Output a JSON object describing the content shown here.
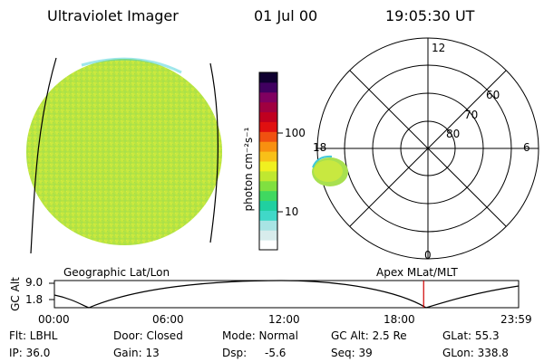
{
  "header": {
    "title": "Ultraviolet Imager",
    "date": "01 Jul 00",
    "time": "19:05:30 UT"
  },
  "colorbar": {
    "unit_label": "photon cm⁻²s⁻¹",
    "tick_labels": [
      "100",
      "10"
    ],
    "colors": [
      "#ffffff",
      "#d8ecec",
      "#a8e4e4",
      "#40d8c8",
      "#20d0a0",
      "#40d860",
      "#80e040",
      "#c0e830",
      "#f0f020",
      "#f8c018",
      "#f89010",
      "#f05010",
      "#e01010",
      "#c00020",
      "#a00040",
      "#800060",
      "#400060",
      "#100030"
    ]
  },
  "polar": {
    "lat_labels": [
      "80",
      "70",
      "60"
    ],
    "mlt_labels": {
      "top": "12",
      "bottom": "0",
      "left": "18",
      "right": "6"
    }
  },
  "timeline": {
    "ylabel": "GC Alt",
    "yticks": [
      "9.0",
      "1.8"
    ],
    "left_caption": "Geographic Lat/Lon",
    "right_caption": "Apex  MLat/MLT",
    "xticks": [
      "00:00",
      "06:00",
      "12:00",
      "18:00",
      "23:59"
    ],
    "marker_color": "#d00000",
    "marker_time_hours": 19.09
  },
  "info": {
    "flt": "Flt: LBHL",
    "ip": "IP: 36.0",
    "door": "Door: Closed",
    "gain": "Gain: 13",
    "mode": "Mode: Normal",
    "dsp_label": "Dsp:",
    "dsp_value": "-5.6",
    "gc_alt": "GC Alt: 2.5 Re",
    "seq": "Seq: 39",
    "glat": "GLat:  55.3",
    "glon": "GLon: 338.8"
  }
}
